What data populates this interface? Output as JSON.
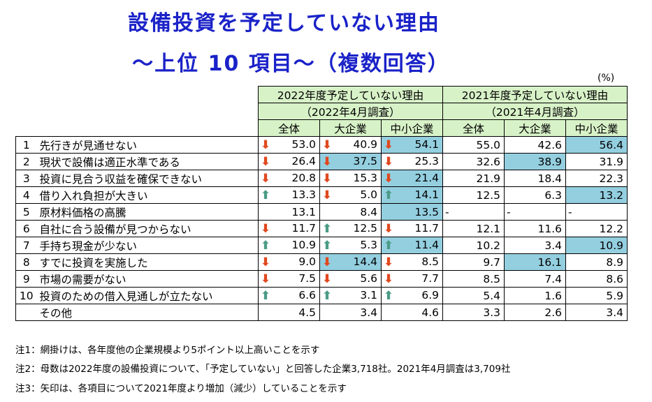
{
  "title_line1": "設備投資を予定していない理由",
  "title_line2": "～上位 10 項目～（複数回答）",
  "unit": "(%)",
  "header": {
    "group2022": "2022年度予定していない理由",
    "group2022_sub": "（2022年4月調査）",
    "group2021": "2021年度予定していない理由",
    "group2021_sub": "（2021年4月調査）",
    "cols": [
      "全体",
      "大企業",
      "中小企業",
      "全体",
      "大企業",
      "中小企業"
    ]
  },
  "rows": [
    {
      "no": "1",
      "label": "先行きが見通せない",
      "v": [
        "53.0",
        "40.9",
        "54.1",
        "55.0",
        "42.6",
        "56.4"
      ],
      "arrows": [
        "down",
        "down",
        "down"
      ],
      "hl": [
        false,
        false,
        true,
        false,
        false,
        true
      ]
    },
    {
      "no": "2",
      "label": "現状で設備は適正水準である",
      "v": [
        "26.4",
        "37.5",
        "25.3",
        "32.6",
        "38.9",
        "31.9"
      ],
      "arrows": [
        "down",
        "down",
        "down"
      ],
      "hl": [
        false,
        true,
        false,
        false,
        true,
        false
      ]
    },
    {
      "no": "3",
      "label": "投資に見合う収益を確保できない",
      "v": [
        "20.8",
        "15.3",
        "21.4",
        "21.9",
        "18.4",
        "22.3"
      ],
      "arrows": [
        "down",
        "down",
        "down"
      ],
      "hl": [
        false,
        false,
        true,
        false,
        false,
        false
      ]
    },
    {
      "no": "4",
      "label": "借り入れ負担が大きい",
      "v": [
        "13.3",
        "5.0",
        "14.1",
        "12.5",
        "6.3",
        "13.2"
      ],
      "arrows": [
        "up",
        "down",
        "up"
      ],
      "hl": [
        false,
        false,
        true,
        false,
        false,
        true
      ]
    },
    {
      "no": "5",
      "label": "原材料価格の高騰",
      "v": [
        "13.1",
        "8.4",
        "13.5",
        "-",
        "-",
        "-"
      ],
      "arrows": [
        "",
        "",
        ""
      ],
      "hl": [
        false,
        false,
        true,
        false,
        false,
        false
      ]
    },
    {
      "no": "6",
      "label": "自社に合う設備が見つからない",
      "v": [
        "11.7",
        "12.5",
        "11.7",
        "12.1",
        "11.6",
        "12.2"
      ],
      "arrows": [
        "down",
        "up",
        "down"
      ],
      "hl": [
        false,
        false,
        false,
        false,
        false,
        false
      ]
    },
    {
      "no": "7",
      "label": "手持ち現金が少ない",
      "v": [
        "10.9",
        "5.3",
        "11.4",
        "10.2",
        "3.4",
        "10.9"
      ],
      "arrows": [
        "up",
        "up",
        "up"
      ],
      "hl": [
        false,
        false,
        true,
        false,
        false,
        true
      ]
    },
    {
      "no": "8",
      "label": "すでに投資を実施した",
      "v": [
        "9.0",
        "14.4",
        "8.5",
        "9.7",
        "16.1",
        "8.9"
      ],
      "arrows": [
        "down",
        "down",
        "down"
      ],
      "hl": [
        false,
        true,
        false,
        false,
        true,
        false
      ]
    },
    {
      "no": "9",
      "label": "市場の需要がない",
      "v": [
        "7.5",
        "5.6",
        "7.7",
        "8.5",
        "7.4",
        "8.6"
      ],
      "arrows": [
        "down",
        "down",
        "down"
      ],
      "hl": [
        false,
        false,
        false,
        false,
        false,
        false
      ]
    },
    {
      "no": "10",
      "label": "投資のための借入見通しが立たない",
      "v": [
        "6.6",
        "3.1",
        "6.9",
        "5.4",
        "1.6",
        "5.9"
      ],
      "arrows": [
        "up",
        "up",
        "up"
      ],
      "hl": [
        false,
        false,
        false,
        false,
        false,
        false
      ]
    },
    {
      "no": "",
      "label": "その他",
      "v": [
        "4.5",
        "3.4",
        "4.6",
        "3.3",
        "2.6",
        "3.4"
      ],
      "arrows": [
        "",
        "",
        ""
      ],
      "hl": [
        false,
        false,
        false,
        false,
        false,
        false
      ]
    }
  ],
  "notes": [
    "注1：網掛けは、各年度他の企業規模より5ポイント以上高いことを示す",
    "注2：母数は2022年度の設備投資について、「予定していない」と回答した企業3,718社。2021年4月調査は3,709社",
    "注3：矢印は、各項目について2021年度より増加（減少）していることを示す"
  ],
  "colors": {
    "title": "#1a22c8",
    "header_bg": "#d8f2c8",
    "highlight": "#94cfe0",
    "arrow_down": "#e0481e",
    "arrow_up": "#4a9c86"
  }
}
